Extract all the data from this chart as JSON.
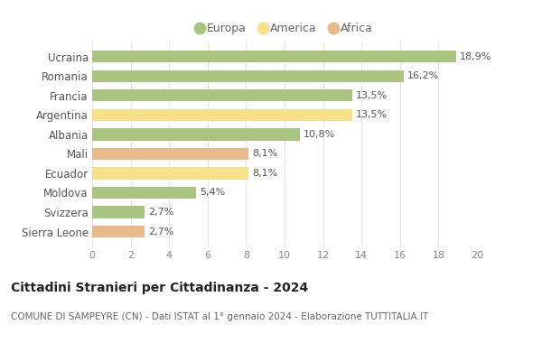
{
  "categories": [
    "Ucraina",
    "Romania",
    "Francia",
    "Argentina",
    "Albania",
    "Mali",
    "Ecuador",
    "Moldova",
    "Svizzera",
    "Sierra Leone"
  ],
  "values": [
    18.9,
    16.2,
    13.5,
    13.5,
    10.8,
    8.1,
    8.1,
    5.4,
    2.7,
    2.7
  ],
  "labels": [
    "18,9%",
    "16,2%",
    "13,5%",
    "13,5%",
    "10,8%",
    "8,1%",
    "8,1%",
    "5,4%",
    "2,7%",
    "2,7%"
  ],
  "continents": [
    "Europa",
    "Europa",
    "Europa",
    "America",
    "Europa",
    "Africa",
    "America",
    "Europa",
    "Europa",
    "Africa"
  ],
  "colors": {
    "Europa": "#a8c47e",
    "America": "#f7e08a",
    "Africa": "#e8b989"
  },
  "legend_order": [
    "Europa",
    "America",
    "Africa"
  ],
  "xlim": [
    0,
    20
  ],
  "xticks": [
    0,
    2,
    4,
    6,
    8,
    10,
    12,
    14,
    16,
    18,
    20
  ],
  "title": "Cittadini Stranieri per Cittadinanza - 2024",
  "subtitle": "COMUNE DI SAMPEYRE (CN) - Dati ISTAT al 1° gennaio 2024 - Elaborazione TUTTITALIA.IT",
  "background_color": "#ffffff",
  "bar_label_fontsize": 8,
  "axis_label_fontsize": 8,
  "title_fontsize": 10,
  "subtitle_fontsize": 7.5,
  "legend_fontsize": 9,
  "ytick_fontsize": 8.5,
  "bar_height": 0.62
}
